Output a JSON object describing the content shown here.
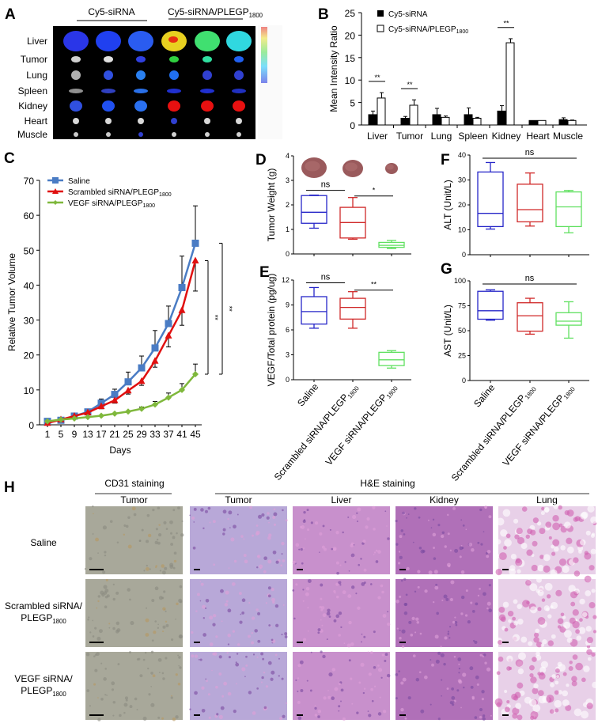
{
  "panels": {
    "A": "A",
    "B": "B",
    "C": "C",
    "D": "D",
    "E": "E",
    "F": "F",
    "G": "G",
    "H": "H"
  },
  "panel_a": {
    "groups": [
      {
        "main": "Cy5-siRNA",
        "sub": ""
      },
      {
        "main": "Cy5-siRNA/PLEGP",
        "sub": "1800"
      }
    ],
    "organs": [
      "Liver",
      "Tumor",
      "Lung",
      "Spleen",
      "Kidney",
      "Heart",
      "Muscle"
    ],
    "signal_colors": [
      [
        "#2a36e8",
        "#2040f0",
        "#2a5cf0",
        "#e8d020",
        "#40e070",
        "#30d8e0"
      ],
      [
        "#d0d0d0",
        "#e0e0e0",
        "#3040e0",
        "#30d040",
        "#30e0a0",
        "#2060f0"
      ],
      [
        "#b0b0b0",
        "#3050e0",
        "#2a80f0",
        "#2070f0",
        "#3040d0",
        "#3040d0"
      ],
      [
        "#909090",
        "#3040c0",
        "#2a70e8",
        "#2030d0",
        "#2030d0",
        "#2030c0"
      ],
      [
        "#3050e0",
        "#2050f0",
        "#2a70f0",
        "#e81010",
        "#e81010",
        "#e81010"
      ],
      [
        "#d8d8d8",
        "#d8d8d8",
        "#d8d8d8",
        "#3040d0",
        "#d8d8d8",
        "#d8d8d8"
      ],
      [
        "#c8c8c8",
        "#c8c8c8",
        "#3040d0",
        "#d0d0d0",
        "#d0d0d0",
        "#d0d0d0"
      ]
    ]
  },
  "chart_data": [
    {
      "panel": "B",
      "type": "bar",
      "categories": [
        "Liver",
        "Tumor",
        "Lung",
        "Spleen",
        "Kidney",
        "Heart",
        "Muscle"
      ],
      "series": [
        {
          "name": "Cy5-siRNA",
          "sub": "",
          "color": "#000000",
          "values": [
            2.3,
            1.5,
            2.3,
            2.3,
            3.1,
            1.0,
            1.2
          ],
          "errors": [
            0.8,
            0.4,
            1.4,
            1.5,
            1.2,
            0,
            0.4
          ]
        },
        {
          "name": "Cy5-siRNA/PLEGP",
          "sub": "1800",
          "color": "#ffffff",
          "values": [
            6.0,
            4.4,
            1.7,
            1.5,
            18.3,
            1.0,
            1.0
          ],
          "errors": [
            1.2,
            1.2,
            0.3,
            0.2,
            0.9,
            0,
            0.1
          ]
        }
      ],
      "significance": [
        {
          "category": "Liver",
          "label": "**"
        },
        {
          "category": "Tumor",
          "label": "**"
        },
        {
          "category": "Kidney",
          "label": "**"
        }
      ],
      "ylabel": "Mean Intensity  Ratio",
      "ylim": [
        0,
        25
      ],
      "yticks": [
        "0",
        "5",
        "10",
        "15",
        "20",
        "25"
      ],
      "legend": "top-left"
    },
    {
      "panel": "C",
      "type": "line",
      "x": [
        1,
        5,
        9,
        13,
        17,
        21,
        25,
        29,
        33,
        37,
        41,
        45
      ],
      "xticks": [
        "1",
        "5",
        "9",
        "13",
        "17",
        "21",
        "25",
        "29",
        "33",
        "37",
        "41",
        "45"
      ],
      "series": [
        {
          "name": "Saline",
          "sub": "",
          "color": "#4a7cc4",
          "marker": "square",
          "values": [
            1,
            1.3,
            2.5,
            3.7,
            6.2,
            8.7,
            12.3,
            16.3,
            22,
            29,
            39.3,
            52
          ],
          "errors": [
            0.2,
            0.4,
            0.3,
            0.5,
            1.2,
            1.5,
            2.8,
            3.4,
            5,
            5,
            9,
            10.7
          ],
          "error_dir": "up"
        },
        {
          "name": "Scrambled siRNA/PLEGP",
          "sub": "1800",
          "color": "#e01010",
          "marker": "triangle",
          "values": [
            0.5,
            1.5,
            2.5,
            3.5,
            5.3,
            7,
            9.8,
            12.5,
            18.3,
            25.5,
            32.8,
            47
          ],
          "errors": [
            0,
            0.3,
            0.3,
            0.4,
            0.7,
            0.8,
            1,
            1.2,
            1.8,
            3.2,
            4.3,
            8.7
          ],
          "error_dir": "down"
        },
        {
          "name": "VEGF siRNA/PLEGP",
          "sub": "1800",
          "color": "#7fb83c",
          "marker": "diamond",
          "values": [
            1,
            1.5,
            1.8,
            2.2,
            2.6,
            3.2,
            3.8,
            4.6,
            5.8,
            7.8,
            10,
            14.5
          ],
          "errors": [
            0,
            0,
            0,
            0,
            0,
            0,
            0,
            0.5,
            0.9,
            1.3,
            1.8,
            2.9
          ],
          "error_dir": "up"
        }
      ],
      "significance": [
        {
          "label": "**",
          "between": [
            "Scrambled siRNA/PLEGP1800",
            "VEGF siRNA/PLEGP1800"
          ]
        },
        {
          "label": "**",
          "between": [
            "Saline",
            "VEGF siRNA/PLEGP1800"
          ]
        }
      ],
      "xlabel": "Days",
      "ylabel": "Relative Tumor Volume",
      "ylim": [
        0,
        70
      ],
      "yticks": [
        "0",
        "10",
        "20",
        "30",
        "40",
        "50",
        "60",
        "70"
      ],
      "legend": "top-left"
    },
    {
      "panel": "D",
      "type": "box",
      "ylabel": "Tumor Weight (g)",
      "ylim": [
        0,
        4
      ],
      "yticks": [
        "0",
        "1",
        "2",
        "3",
        "4"
      ],
      "groups": [
        "Saline",
        "Scrambled siRNA/PLEGP1800",
        "VEGF siRNA/PLEGP1800"
      ],
      "colors": [
        "#2626c8",
        "#d02828",
        "#60e060"
      ],
      "boxes": [
        [
          1.05,
          1.25,
          1.7,
          2.38,
          2.4
        ],
        [
          0.6,
          0.65,
          1.28,
          1.9,
          2.3
        ],
        [
          0.22,
          0.27,
          0.35,
          0.47,
          0.55
        ]
      ],
      "significance": [
        {
          "label": "ns",
          "pair": [
            0,
            1
          ]
        },
        {
          "label": "*",
          "pair": [
            1,
            2
          ]
        }
      ]
    },
    {
      "panel": "E",
      "type": "box",
      "ylabel": "VEGF/Total protein (pg/ug)",
      "ylim": [
        0,
        12
      ],
      "yticks": [
        "0",
        "3",
        "6",
        "9",
        "12"
      ],
      "groups": [
        "Saline",
        "Scrambled siRNA/PLEGP1800",
        "VEGF siRNA/PLEGP1800"
      ],
      "colors": [
        "#2626c8",
        "#d02828",
        "#60e060"
      ],
      "boxes": [
        [
          6.2,
          6.7,
          8.2,
          10,
          11.1
        ],
        [
          6.2,
          7.3,
          8.7,
          9.8,
          10.6
        ],
        [
          1.4,
          1.7,
          2.4,
          3.3,
          3.5
        ]
      ],
      "significance": [
        {
          "label": "ns",
          "pair": [
            0,
            1
          ]
        },
        {
          "label": "**",
          "pair": [
            1,
            2
          ]
        }
      ]
    },
    {
      "panel": "F",
      "type": "box",
      "ylabel": "ALT (Unit/L)",
      "ylim": [
        0,
        40
      ],
      "yticks": [
        "0",
        "10",
        "20",
        "30",
        "40"
      ],
      "groups": [
        "Saline",
        "Scrambled siRNA/PLEGP1800",
        "VEGF siRNA/PLEGP1800"
      ],
      "colors": [
        "#2626c8",
        "#d02828",
        "#60e060"
      ],
      "boxes": [
        [
          10.3,
          11.3,
          16.6,
          33.2,
          37
        ],
        [
          11.5,
          13.2,
          18.1,
          28.3,
          32.8
        ],
        [
          8.8,
          11.3,
          19.2,
          25.2,
          25.8
        ]
      ],
      "significance": [
        {
          "label": "ns",
          "pair": [
            0,
            2
          ]
        }
      ]
    },
    {
      "panel": "G",
      "type": "box",
      "ylabel": "AST (Unit/L)",
      "ylim": [
        0,
        100
      ],
      "yticks": [
        "0",
        "25",
        "50",
        "75",
        "100"
      ],
      "groups": [
        "Saline",
        "Scrambled siRNA/PLEGP1800",
        "VEGF siRNA/PLEGP1800"
      ],
      "colors": [
        "#2626c8",
        "#d02828",
        "#60e060"
      ],
      "boxes": [
        [
          60.5,
          61.5,
          70,
          89.5,
          91
        ],
        [
          46.5,
          49.5,
          65,
          78,
          82.5
        ],
        [
          42.5,
          55.5,
          59.5,
          68,
          79
        ]
      ],
      "significance": [
        {
          "label": "ns",
          "pair": [
            0,
            2
          ]
        }
      ]
    }
  ],
  "box_xlabels": [
    {
      "main": "Saline",
      "sub": ""
    },
    {
      "main": "Scrambled siRNA/PLEGP",
      "sub": "1800"
    },
    {
      "main": "VEGF siRNA/PLEGP",
      "sub": "1800"
    }
  ],
  "panel_h": {
    "groups": [
      "CD31 staining",
      "H&E staining"
    ],
    "columns": [
      "Tumor",
      "Tumor",
      "Liver",
      "Kidney",
      "Lung"
    ],
    "rows": [
      {
        "line1": "Saline",
        "main": "",
        "sub": ""
      },
      {
        "line1": "Scrambled siRNA/",
        "main": "PLEGP",
        "sub": "1800"
      },
      {
        "line1": "VEGF siRNA/",
        "main": "PLEGP",
        "sub": "1800"
      }
    ],
    "tissue_colors": [
      "#a8a89a",
      "#b8a8d8",
      "#c890cc",
      "#b070b8",
      "#e8d0e8"
    ]
  }
}
